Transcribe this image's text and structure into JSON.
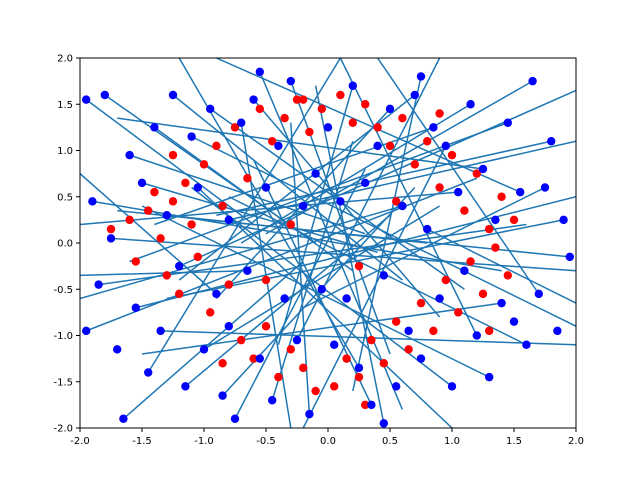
{
  "chart_data": {
    "type": "scatter",
    "title": "",
    "xlabel": "",
    "ylabel": "",
    "xlim": [
      -2,
      2
    ],
    "ylim": [
      -2,
      2
    ],
    "grid": false,
    "legend": "none",
    "x_ticks": [
      "-2.0",
      "-1.5",
      "-1.0",
      "-0.5",
      "0.0",
      "0.5",
      "1.0",
      "1.5",
      "2.0"
    ],
    "y_ticks": [
      "2.0",
      "1.5",
      "1.0",
      "0.5",
      "0.0",
      "-0.5",
      "-1.0",
      "-1.5",
      "-2.0"
    ],
    "colors": {
      "red_points": "#ff0000",
      "blue_points": "#0000ff",
      "lines": "#1f77b4",
      "axes": "#000000"
    },
    "series": [
      {
        "marker": "red-point",
        "points": [
          [
            -1.75,
            0.15
          ],
          [
            -1.6,
            0.25
          ],
          [
            -1.55,
            -0.2
          ],
          [
            -1.45,
            0.35
          ],
          [
            -1.4,
            0.55
          ],
          [
            -1.35,
            0.05
          ],
          [
            -1.3,
            -0.35
          ],
          [
            -1.25,
            0.45
          ],
          [
            -1.2,
            -0.55
          ],
          [
            -1.15,
            0.65
          ],
          [
            -1.1,
            0.2
          ],
          [
            -1.05,
            -0.15
          ],
          [
            -1.0,
            0.85
          ],
          [
            -0.95,
            -0.75
          ],
          [
            -0.9,
            1.05
          ],
          [
            -0.85,
            0.4
          ],
          [
            -0.8,
            -0.45
          ],
          [
            -0.75,
            1.25
          ],
          [
            -0.7,
            -1.05
          ],
          [
            -0.65,
            0.7
          ],
          [
            -0.6,
            -1.25
          ],
          [
            -0.55,
            1.45
          ],
          [
            -0.5,
            -0.9
          ],
          [
            -0.45,
            1.1
          ],
          [
            -0.4,
            -1.45
          ],
          [
            -0.35,
            1.35
          ],
          [
            -0.3,
            -1.15
          ],
          [
            -0.25,
            1.55
          ],
          [
            -0.2,
            -1.35
          ],
          [
            -0.15,
            1.2
          ],
          [
            -0.1,
            -1.6
          ],
          [
            -0.05,
            1.45
          ],
          [
            0.05,
            -1.55
          ],
          [
            0.1,
            1.6
          ],
          [
            0.15,
            -1.25
          ],
          [
            0.2,
            1.3
          ],
          [
            0.25,
            -1.45
          ],
          [
            0.3,
            1.5
          ],
          [
            0.35,
            -1.05
          ],
          [
            0.4,
            1.25
          ],
          [
            0.45,
            -1.3
          ],
          [
            0.5,
            1.05
          ],
          [
            0.55,
            -0.85
          ],
          [
            0.6,
            1.35
          ],
          [
            0.65,
            -1.15
          ],
          [
            0.7,
            0.85
          ],
          [
            0.75,
            -0.65
          ],
          [
            0.8,
            1.1
          ],
          [
            0.85,
            -0.95
          ],
          [
            0.9,
            0.6
          ],
          [
            0.95,
            -0.4
          ],
          [
            1.0,
            0.95
          ],
          [
            1.05,
            -0.75
          ],
          [
            1.1,
            0.35
          ],
          [
            1.15,
            -0.2
          ],
          [
            1.2,
            0.75
          ],
          [
            1.25,
            -0.55
          ],
          [
            1.3,
            0.15
          ],
          [
            1.35,
            -0.05
          ],
          [
            1.4,
            0.5
          ],
          [
            1.45,
            -0.35
          ],
          [
            1.5,
            0.25
          ],
          [
            -0.3,
            0.2
          ],
          [
            0.25,
            -0.25
          ],
          [
            -0.5,
            -0.4
          ],
          [
            0.55,
            0.45
          ],
          [
            -0.85,
            -1.3
          ],
          [
            0.9,
            1.4
          ],
          [
            -1.25,
            0.95
          ],
          [
            1.3,
            -0.95
          ],
          [
            -0.2,
            1.55
          ],
          [
            0.3,
            -1.75
          ]
        ]
      },
      {
        "marker": "blue-point",
        "points": [
          [
            -1.95,
            1.55
          ],
          [
            -1.8,
            1.6
          ],
          [
            -1.7,
            -1.15
          ],
          [
            -1.65,
            -1.9
          ],
          [
            -1.6,
            0.95
          ],
          [
            -1.55,
            -0.7
          ],
          [
            -1.5,
            0.65
          ],
          [
            -1.45,
            -1.4
          ],
          [
            -1.4,
            1.25
          ],
          [
            -1.35,
            -0.95
          ],
          [
            -1.3,
            0.3
          ],
          [
            -1.25,
            1.6
          ],
          [
            -1.2,
            -0.25
          ],
          [
            -1.15,
            -1.55
          ],
          [
            -1.1,
            1.15
          ],
          [
            -1.05,
            0.6
          ],
          [
            -1.0,
            -1.15
          ],
          [
            -0.95,
            1.45
          ],
          [
            -0.9,
            -0.55
          ],
          [
            -0.85,
            -1.65
          ],
          [
            -0.8,
            0.25
          ],
          [
            -0.75,
            -1.9
          ],
          [
            -0.7,
            1.3
          ],
          [
            -0.65,
            -0.3
          ],
          [
            -0.6,
            1.55
          ],
          [
            -0.55,
            -1.25
          ],
          [
            -0.5,
            0.6
          ],
          [
            -0.45,
            -1.7
          ],
          [
            -0.4,
            1.05
          ],
          [
            -0.35,
            -0.6
          ],
          [
            -0.3,
            1.75
          ],
          [
            -0.25,
            -1.05
          ],
          [
            -0.2,
            0.4
          ],
          [
            -0.15,
            -1.85
          ],
          [
            -0.1,
            0.75
          ],
          [
            -0.05,
            -0.5
          ],
          [
            0.0,
            1.25
          ],
          [
            0.05,
            -1.1
          ],
          [
            0.1,
            0.45
          ],
          [
            0.15,
            -0.6
          ],
          [
            0.2,
            1.7
          ],
          [
            0.25,
            -1.35
          ],
          [
            0.3,
            0.65
          ],
          [
            0.35,
            -1.75
          ],
          [
            0.4,
            1.05
          ],
          [
            0.45,
            -0.35
          ],
          [
            0.5,
            1.45
          ],
          [
            0.55,
            -1.55
          ],
          [
            0.6,
            0.4
          ],
          [
            0.65,
            -0.95
          ],
          [
            0.7,
            1.6
          ],
          [
            0.75,
            -1.25
          ],
          [
            0.8,
            0.15
          ],
          [
            0.85,
            1.25
          ],
          [
            0.9,
            -0.6
          ],
          [
            0.95,
            1.05
          ],
          [
            1.0,
            -1.55
          ],
          [
            1.05,
            0.55
          ],
          [
            1.1,
            -0.3
          ],
          [
            1.15,
            1.5
          ],
          [
            1.2,
            -1.0
          ],
          [
            1.25,
            0.8
          ],
          [
            1.3,
            -1.45
          ],
          [
            1.35,
            0.25
          ],
          [
            1.4,
            -0.65
          ],
          [
            1.45,
            1.3
          ],
          [
            1.5,
            -0.85
          ],
          [
            1.55,
            0.55
          ],
          [
            1.6,
            -1.1
          ],
          [
            1.65,
            1.75
          ],
          [
            1.7,
            -0.55
          ],
          [
            1.75,
            0.6
          ],
          [
            1.8,
            1.1
          ],
          [
            1.85,
            -0.95
          ],
          [
            1.9,
            0.25
          ],
          [
            -1.9,
            0.45
          ],
          [
            -1.85,
            -0.45
          ],
          [
            -1.95,
            -0.95
          ],
          [
            -1.75,
            0.05
          ],
          [
            1.95,
            -0.15
          ],
          [
            0.75,
            1.8
          ],
          [
            -0.8,
            -0.9
          ],
          [
            0.45,
            -1.95
          ],
          [
            -0.55,
            1.85
          ]
        ]
      }
    ],
    "lines": [
      [
        [
          -1.95,
          1.55
        ],
        [
          -0.6,
          0.2
        ]
      ],
      [
        [
          -1.8,
          1.6
        ],
        [
          -0.1,
          0.0
        ]
      ],
      [
        [
          -1.65,
          -1.9
        ],
        [
          -0.2,
          -0.2
        ]
      ],
      [
        [
          -1.6,
          0.95
        ],
        [
          0.3,
          0.1
        ]
      ],
      [
        [
          -1.5,
          0.65
        ],
        [
          0.4,
          -0.1
        ]
      ],
      [
        [
          -1.4,
          1.25
        ],
        [
          0.2,
          -0.3
        ]
      ],
      [
        [
          -1.3,
          0.3
        ],
        [
          0.8,
          0.0
        ]
      ],
      [
        [
          -1.25,
          1.6
        ],
        [
          0.6,
          -0.4
        ]
      ],
      [
        [
          -1.15,
          -1.55
        ],
        [
          0.5,
          0.3
        ]
      ],
      [
        [
          -1.0,
          -1.15
        ],
        [
          0.9,
          0.4
        ]
      ],
      [
        [
          -0.95,
          1.45
        ],
        [
          1.1,
          -0.5
        ]
      ],
      [
        [
          -0.85,
          -1.65
        ],
        [
          0.7,
          0.6
        ]
      ],
      [
        [
          -0.75,
          -1.9
        ],
        [
          0.3,
          0.8
        ]
      ],
      [
        [
          -0.6,
          1.55
        ],
        [
          0.9,
          -0.8
        ]
      ],
      [
        [
          -0.45,
          -1.7
        ],
        [
          0.2,
          1.1
        ]
      ],
      [
        [
          -0.3,
          1.75
        ],
        [
          0.5,
          -1.2
        ]
      ],
      [
        [
          -0.15,
          -1.85
        ],
        [
          -0.3,
          1.3
        ]
      ],
      [
        [
          0.2,
          1.7
        ],
        [
          -0.4,
          -1.1
        ]
      ],
      [
        [
          0.35,
          -1.75
        ],
        [
          -0.6,
          0.9
        ]
      ],
      [
        [
          0.5,
          1.45
        ],
        [
          -0.9,
          -0.6
        ]
      ],
      [
        [
          0.7,
          1.6
        ],
        [
          -1.2,
          -0.4
        ]
      ],
      [
        [
          0.85,
          1.25
        ],
        [
          -1.4,
          0.2
        ]
      ],
      [
        [
          1.0,
          -1.55
        ],
        [
          -1.1,
          0.6
        ]
      ],
      [
        [
          1.15,
          1.5
        ],
        [
          -0.7,
          0.0
        ]
      ],
      [
        [
          1.3,
          -1.45
        ],
        [
          -1.5,
          0.4
        ]
      ],
      [
        [
          1.45,
          1.3
        ],
        [
          -1.6,
          -0.2
        ]
      ],
      [
        [
          1.6,
          -1.1
        ],
        [
          -0.8,
          0.5
        ]
      ],
      [
        [
          1.65,
          1.75
        ],
        [
          -0.5,
          0.1
        ]
      ],
      [
        [
          1.8,
          1.1
        ],
        [
          -0.9,
          0.3
        ]
      ],
      [
        [
          1.9,
          0.25
        ],
        [
          -1.3,
          -0.6
        ]
      ],
      [
        [
          1.95,
          -0.15
        ],
        [
          -1.7,
          0.35
        ]
      ],
      [
        [
          1.75,
          0.6
        ],
        [
          -0.2,
          -0.7
        ]
      ],
      [
        [
          -1.9,
          0.45
        ],
        [
          1.4,
          -0.3
        ]
      ],
      [
        [
          -1.85,
          -0.45
        ],
        [
          1.6,
          0.2
        ]
      ],
      [
        [
          -1.95,
          -0.95
        ],
        [
          1.2,
          0.7
        ]
      ],
      [
        [
          0.75,
          1.8
        ],
        [
          0.2,
          -1.6
        ]
      ],
      [
        [
          0.45,
          -1.95
        ],
        [
          -0.1,
          1.7
        ]
      ],
      [
        [
          -0.55,
          1.85
        ],
        [
          0.6,
          -1.8
        ]
      ],
      [
        [
          -1.75,
          0.05
        ],
        [
          2.0,
          -0.3
        ]
      ],
      [
        [
          -1.55,
          -0.7
        ],
        [
          2.0,
          0.5
        ]
      ],
      [
        [
          -1.35,
          -0.95
        ],
        [
          2.0,
          -1.1
        ]
      ],
      [
        [
          -1.2,
          -0.25
        ],
        [
          2.0,
          1.65
        ]
      ],
      [
        [
          -1.1,
          1.15
        ],
        [
          2.0,
          -0.9
        ]
      ],
      [
        [
          -0.9,
          -0.55
        ],
        [
          -2.0,
          0.75
        ]
      ],
      [
        [
          -0.8,
          0.25
        ],
        [
          2.0,
          1.1
        ]
      ],
      [
        [
          -0.65,
          -0.3
        ],
        [
          -2.0,
          -0.35
        ]
      ],
      [
        [
          0.6,
          0.4
        ],
        [
          -2.0,
          -0.6
        ]
      ],
      [
        [
          0.8,
          0.15
        ],
        [
          2.0,
          -0.65
        ]
      ],
      [
        [
          1.05,
          0.55
        ],
        [
          -2.0,
          0.2
        ]
      ],
      [
        [
          1.25,
          0.8
        ],
        [
          -1.7,
          1.35
        ]
      ],
      [
        [
          1.4,
          -0.65
        ],
        [
          -1.5,
          -1.2
        ]
      ],
      [
        [
          1.55,
          0.55
        ],
        [
          -0.9,
          2.0
        ]
      ],
      [
        [
          1.7,
          -0.55
        ],
        [
          0.4,
          2.0
        ]
      ],
      [
        [
          -1.45,
          -1.4
        ],
        [
          0.1,
          2.0
        ]
      ],
      [
        [
          -1.05,
          0.6
        ],
        [
          1.0,
          -2.0
        ]
      ],
      [
        [
          -0.7,
          1.3
        ],
        [
          -0.3,
          -2.0
        ]
      ],
      [
        [
          0.95,
          1.05
        ],
        [
          -0.2,
          -2.0
        ]
      ],
      [
        [
          1.2,
          -1.0
        ],
        [
          0.1,
          2.0
        ]
      ],
      [
        [
          0.25,
          -1.35
        ],
        [
          -1.2,
          2.0
        ]
      ],
      [
        [
          -0.25,
          -1.05
        ],
        [
          0.9,
          2.0
        ]
      ]
    ]
  }
}
